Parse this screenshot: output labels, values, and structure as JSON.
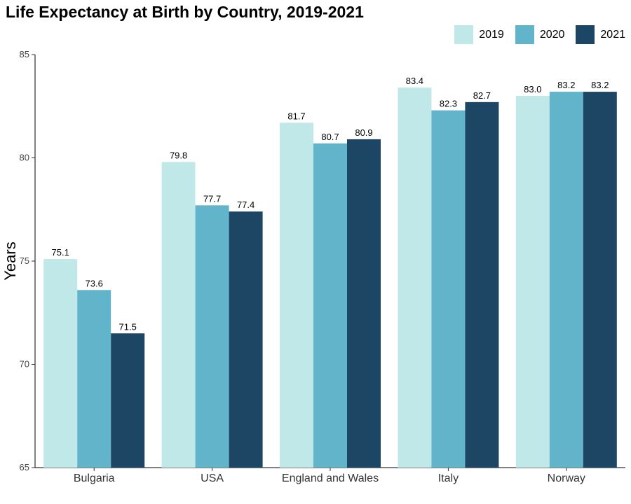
{
  "chart_data": {
    "type": "bar",
    "title": "Life Expectancy at Birth by Country, 2019-2021",
    "ylabel": "Years",
    "xlabel": "",
    "ylim": [
      65,
      85
    ],
    "yticks": [
      65,
      70,
      75,
      80,
      85
    ],
    "categories": [
      "Bulgaria",
      "USA",
      "England and Wales",
      "Italy",
      "Norway"
    ],
    "series": [
      {
        "name": "2019",
        "color": "#c0e8e9",
        "values": [
          75.1,
          79.8,
          81.7,
          83.4,
          83.0
        ]
      },
      {
        "name": "2020",
        "color": "#61b4ca",
        "values": [
          73.6,
          77.7,
          80.7,
          82.3,
          83.2
        ]
      },
      {
        "name": "2021",
        "color": "#1c4664",
        "values": [
          71.5,
          77.4,
          80.9,
          82.7,
          83.2
        ]
      }
    ],
    "data_labels": [
      [
        "75.1",
        "79.8",
        "81.7",
        "83.4",
        "83.0"
      ],
      [
        "73.6",
        "77.7",
        "80.7",
        "82.3",
        "83.2"
      ],
      [
        "71.5",
        "77.4",
        "80.9",
        "82.7",
        "83.2"
      ]
    ],
    "legend_position": "top-right",
    "grid": false
  }
}
